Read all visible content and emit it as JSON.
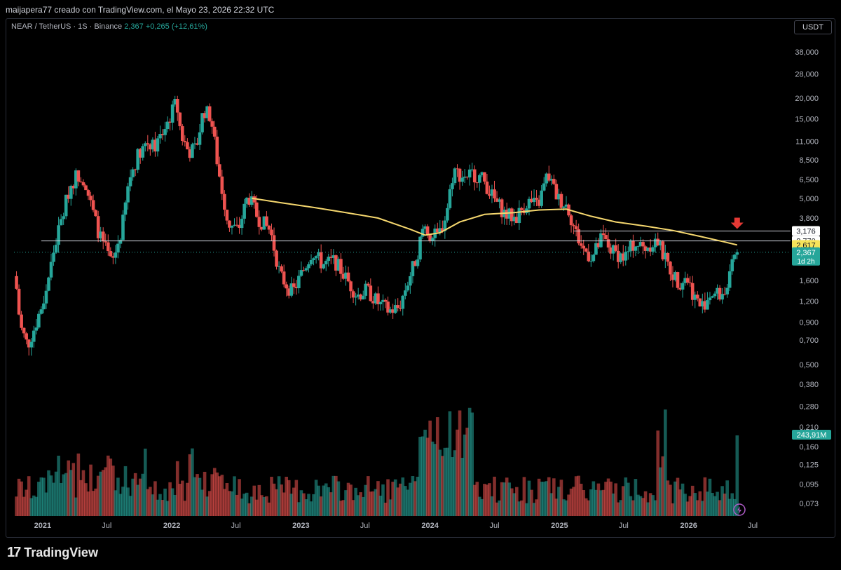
{
  "header": {
    "attribution": "maijapera77 creado con TradingView.com, el Mayo 23, 2026 22:32 UTC"
  },
  "symbol": {
    "name": "NEAR / TetherUS · 1S · Binance",
    "last": "2,367",
    "change": "+0,265 (+12,61%)"
  },
  "currency_button": "USDT",
  "footer": {
    "logo_mark": "17",
    "logo_text": "TradingView"
  },
  "colors": {
    "up": "#26a69a",
    "down": "#ef5350",
    "ma": "#f5d76e",
    "level_line": "#d1d4dc",
    "arrow": "#e53935",
    "grid_text": "#b2b5be"
  },
  "icons": {
    "lightning": "lightning-icon",
    "arrow": "arrow-down-icon"
  },
  "chart_data": {
    "type": "candlestick",
    "title": "",
    "scale": "log",
    "ylim": [
      0.06,
      48
    ],
    "y_ticks": [
      "38,000",
      "28,000",
      "20,000",
      "15,000",
      "11,000",
      "8,500",
      "6,500",
      "5,000",
      "3,800",
      "1,600",
      "1,200",
      "0,900",
      "0,700",
      "0,500",
      "0,380",
      "0,280",
      "0,210",
      "0,160",
      "0,125",
      "0,095",
      "0,073"
    ],
    "y_tick_values": [
      38,
      28,
      20,
      15,
      11,
      8.5,
      6.5,
      5.0,
      3.8,
      1.6,
      1.2,
      0.9,
      0.7,
      0.5,
      0.38,
      0.28,
      0.21,
      0.16,
      0.125,
      0.095,
      0.073
    ],
    "x_ticks": [
      "2021",
      "Jul",
      "2022",
      "Jul",
      "2023",
      "Jul",
      "2024",
      "Jul",
      "2025",
      "Jul",
      "2026",
      "Jul"
    ],
    "x_tick_dates": [
      "2021-01-01",
      "2021-07-01",
      "2022-01-01",
      "2022-07-01",
      "2023-01-01",
      "2023-07-01",
      "2024-01-01",
      "2024-07-01",
      "2025-01-01",
      "2025-07-01",
      "2026-01-01",
      "2026-07-01"
    ],
    "x_range": [
      "2020-10-12",
      "2026-10-10"
    ],
    "price_path": [
      {
        "date": "2020-10-19",
        "price": 1.7
      },
      {
        "date": "2020-11-02",
        "price": 0.85
      },
      {
        "date": "2020-11-23",
        "price": 0.65
      },
      {
        "date": "2020-12-14",
        "price": 0.85
      },
      {
        "date": "2021-01-11",
        "price": 1.3
      },
      {
        "date": "2021-02-08",
        "price": 2.6
      },
      {
        "date": "2021-02-22",
        "price": 3.4
      },
      {
        "date": "2021-03-22",
        "price": 5.8
      },
      {
        "date": "2021-04-12",
        "price": 7.0
      },
      {
        "date": "2021-05-03",
        "price": 6.5
      },
      {
        "date": "2021-05-24",
        "price": 4.3
      },
      {
        "date": "2021-06-14",
        "price": 3.0
      },
      {
        "date": "2021-07-19",
        "price": 2.0
      },
      {
        "date": "2021-08-16",
        "price": 3.2
      },
      {
        "date": "2021-09-06",
        "price": 6.5
      },
      {
        "date": "2021-10-04",
        "price": 9.5
      },
      {
        "date": "2021-10-25",
        "price": 11.0
      },
      {
        "date": "2021-11-15",
        "price": 10.0
      },
      {
        "date": "2021-12-06",
        "price": 12.0
      },
      {
        "date": "2022-01-03",
        "price": 16.0
      },
      {
        "date": "2022-01-17",
        "price": 19.0
      },
      {
        "date": "2022-01-31",
        "price": 12.0
      },
      {
        "date": "2022-02-21",
        "price": 9.5
      },
      {
        "date": "2022-03-14",
        "price": 10.0
      },
      {
        "date": "2022-04-04",
        "price": 17.0
      },
      {
        "date": "2022-04-25",
        "price": 15.5
      },
      {
        "date": "2022-05-16",
        "price": 7.5
      },
      {
        "date": "2022-06-13",
        "price": 3.5
      },
      {
        "date": "2022-07-11",
        "price": 3.2
      },
      {
        "date": "2022-08-08",
        "price": 5.2
      },
      {
        "date": "2022-09-05",
        "price": 3.8
      },
      {
        "date": "2022-10-10",
        "price": 3.2
      },
      {
        "date": "2022-11-07",
        "price": 1.7
      },
      {
        "date": "2022-12-12",
        "price": 1.35
      },
      {
        "date": "2023-01-09",
        "price": 1.8
      },
      {
        "date": "2023-02-06",
        "price": 2.4
      },
      {
        "date": "2023-03-06",
        "price": 2.0
      },
      {
        "date": "2023-04-10",
        "price": 2.1
      },
      {
        "date": "2023-05-08",
        "price": 1.7
      },
      {
        "date": "2023-06-12",
        "price": 1.3
      },
      {
        "date": "2023-07-10",
        "price": 1.4
      },
      {
        "date": "2023-08-14",
        "price": 1.15
      },
      {
        "date": "2023-09-11",
        "price": 1.05
      },
      {
        "date": "2023-10-09",
        "price": 1.1
      },
      {
        "date": "2023-10-30",
        "price": 1.5
      },
      {
        "date": "2023-11-27",
        "price": 2.2
      },
      {
        "date": "2023-12-18",
        "price": 3.5
      },
      {
        "date": "2024-01-08",
        "price": 2.9
      },
      {
        "date": "2024-01-29",
        "price": 3.0
      },
      {
        "date": "2024-02-19",
        "price": 4.0
      },
      {
        "date": "2024-03-11",
        "price": 7.5
      },
      {
        "date": "2024-04-01",
        "price": 6.8
      },
      {
        "date": "2024-05-06",
        "price": 7.0
      },
      {
        "date": "2024-06-03",
        "price": 6.5
      },
      {
        "date": "2024-07-01",
        "price": 5.0
      },
      {
        "date": "2024-08-05",
        "price": 4.0
      },
      {
        "date": "2024-09-02",
        "price": 3.8
      },
      {
        "date": "2024-10-07",
        "price": 4.8
      },
      {
        "date": "2024-11-04",
        "price": 4.5
      },
      {
        "date": "2024-12-02",
        "price": 7.0
      },
      {
        "date": "2024-12-30",
        "price": 5.0
      },
      {
        "date": "2025-01-27",
        "price": 4.5
      },
      {
        "date": "2025-02-17",
        "price": 3.2
      },
      {
        "date": "2025-03-10",
        "price": 2.5
      },
      {
        "date": "2025-04-07",
        "price": 2.2
      },
      {
        "date": "2025-05-05",
        "price": 2.9
      },
      {
        "date": "2025-06-02",
        "price": 2.4
      },
      {
        "date": "2025-07-07",
        "price": 2.2
      },
      {
        "date": "2025-08-04",
        "price": 2.7
      },
      {
        "date": "2025-09-01",
        "price": 2.5
      },
      {
        "date": "2025-10-06",
        "price": 2.8
      },
      {
        "date": "2025-10-27",
        "price": 2.2
      },
      {
        "date": "2025-11-17",
        "price": 1.8
      },
      {
        "date": "2025-12-08",
        "price": 1.55
      },
      {
        "date": "2025-12-29",
        "price": 1.7
      },
      {
        "date": "2026-01-19",
        "price": 1.3
      },
      {
        "date": "2026-02-09",
        "price": 1.1
      },
      {
        "date": "2026-03-09",
        "price": 1.35
      },
      {
        "date": "2026-04-06",
        "price": 1.3
      },
      {
        "date": "2026-04-27",
        "price": 1.5
      },
      {
        "date": "2026-05-11",
        "price": 2.1
      },
      {
        "date": "2026-05-18",
        "price": 2.367
      }
    ],
    "moving_average": [
      {
        "date": "2022-08-15",
        "price": 5.0
      },
      {
        "date": "2022-11-07",
        "price": 4.7
      },
      {
        "date": "2023-02-06",
        "price": 4.4
      },
      {
        "date": "2023-05-08",
        "price": 4.1
      },
      {
        "date": "2023-08-07",
        "price": 3.8
      },
      {
        "date": "2023-11-06",
        "price": 3.25
      },
      {
        "date": "2023-12-18",
        "price": 3.0
      },
      {
        "date": "2024-01-29",
        "price": 3.1
      },
      {
        "date": "2024-03-25",
        "price": 3.6
      },
      {
        "date": "2024-06-03",
        "price": 4.0
      },
      {
        "date": "2024-08-26",
        "price": 4.1
      },
      {
        "date": "2024-11-04",
        "price": 4.25
      },
      {
        "date": "2025-01-20",
        "price": 4.3
      },
      {
        "date": "2025-03-31",
        "price": 3.9
      },
      {
        "date": "2025-06-09",
        "price": 3.6
      },
      {
        "date": "2025-09-01",
        "price": 3.4
      },
      {
        "date": "2025-11-17",
        "price": 3.2
      },
      {
        "date": "2026-02-02",
        "price": 2.95
      },
      {
        "date": "2026-04-06",
        "price": 2.75
      },
      {
        "date": "2026-05-18",
        "price": 2.617
      }
    ],
    "horizontal_levels": [
      {
        "value": 2.77,
        "label": "2,770",
        "from": "2020-12-28",
        "to": "2026-06-01"
      },
      {
        "value": 3.176,
        "label": "3,176",
        "from": "2025-02-10",
        "to": "2026-06-01"
      }
    ],
    "price_labels": [
      {
        "label": "3,176",
        "value": 3.176,
        "style": "white"
      },
      {
        "label": "2,770",
        "value": 2.77,
        "style": "white"
      },
      {
        "label": "2,617",
        "value": 2.617,
        "style": "yellow"
      },
      {
        "label": "2,367",
        "sub": "1d 2h",
        "value": 2.367,
        "style": "green"
      }
    ],
    "volume_label": "243,91M",
    "volume_max_label_level": 0.21,
    "volume_bars": "weekly volume histogram, colored by candle direction; spikes near 2024-01, 2024-04, 2025-10 and latest week"
  }
}
